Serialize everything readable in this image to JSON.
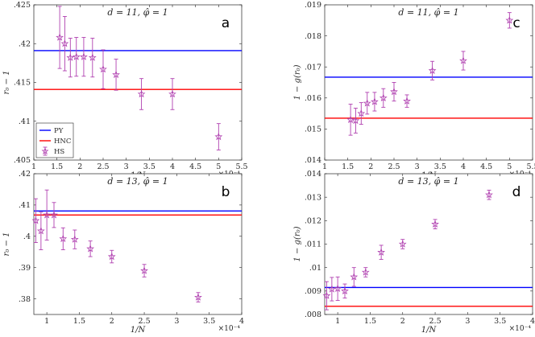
{
  "chart_data": [
    {
      "type": "scatter",
      "panel_letter": "a",
      "title": "d = 11, φ̂ = 1",
      "xlabel": "1/N",
      "ylabel": "r₀ − 1",
      "x_multiplier": "×10⁻⁴",
      "xlim": [
        1,
        5.5
      ],
      "ylim": [
        0.405,
        0.425
      ],
      "xticks": [
        1,
        1.5,
        2,
        2.5,
        3,
        3.5,
        4,
        4.5,
        5,
        5.5
      ],
      "yticks": [
        0.405,
        0.41,
        0.415,
        0.42,
        0.425
      ],
      "lines": [
        {
          "name": "PY",
          "value": 0.4191,
          "color": "#0000ff"
        },
        {
          "name": "HNC",
          "value": 0.4141,
          "color": "#ff0000"
        }
      ],
      "series": [
        {
          "name": "HS",
          "color": "#b040b0",
          "x": [
            1.56,
            1.67,
            1.79,
            1.92,
            2.08,
            2.27,
            2.5,
            2.78,
            3.33,
            4.0,
            5.0
          ],
          "y": [
            0.4208,
            0.42,
            0.4182,
            0.4183,
            0.4183,
            0.4182,
            0.4167,
            0.416,
            0.4135,
            0.4135,
            0.408
          ],
          "err": [
            0.004,
            0.0035,
            0.0025,
            0.0025,
            0.0025,
            0.0025,
            0.0025,
            0.002,
            0.002,
            0.002,
            0.0017
          ]
        }
      ],
      "legend": {
        "placement": "bottom-left",
        "entries": [
          "PY",
          "HNC",
          "HS"
        ]
      }
    },
    {
      "type": "scatter",
      "panel_letter": "c",
      "title": "d = 11, φ̂ = 1",
      "xlabel": "1/N",
      "ylabel": "1 − g(r₀)",
      "x_multiplier": "×10⁻⁴",
      "xlim": [
        1,
        5.5
      ],
      "ylim": [
        0.014,
        0.019
      ],
      "xticks": [
        1,
        1.5,
        2,
        2.5,
        3,
        3.5,
        4,
        4.5,
        5,
        5.5
      ],
      "yticks": [
        0.014,
        0.015,
        0.016,
        0.017,
        0.018,
        0.019
      ],
      "lines": [
        {
          "name": "PY",
          "value": 0.01667,
          "color": "#0000ff"
        },
        {
          "name": "HNC",
          "value": 0.01535,
          "color": "#ff0000"
        }
      ],
      "series": [
        {
          "name": "HS",
          "color": "#b040b0",
          "x": [
            1.56,
            1.67,
            1.79,
            1.92,
            2.08,
            2.27,
            2.5,
            2.78,
            3.33,
            4.0,
            5.0
          ],
          "y": [
            0.0153,
            0.01527,
            0.0155,
            0.01583,
            0.01588,
            0.016,
            0.0162,
            0.0159,
            0.01688,
            0.0172,
            0.0185
          ],
          "err": [
            0.0005,
            0.0004,
            0.00035,
            0.00035,
            0.0003,
            0.0003,
            0.0003,
            0.0002,
            0.0003,
            0.0003,
            0.00025
          ]
        }
      ]
    },
    {
      "type": "scatter",
      "panel_letter": "b",
      "title": "d = 13, φ̂ = 1",
      "xlabel": "1/N",
      "ylabel": "r₀ − 1",
      "x_multiplier": "×10⁻⁴",
      "xlim": [
        0.8,
        4
      ],
      "ylim": [
        0.375,
        0.42
      ],
      "xticks": [
        1,
        1.5,
        2,
        2.5,
        3,
        3.5,
        4
      ],
      "yticks": [
        0.38,
        0.39,
        0.4,
        0.41,
        0.42
      ],
      "lines": [
        {
          "name": "PY",
          "value": 0.4081,
          "color": "#0000ff"
        },
        {
          "name": "HNC",
          "value": 0.4068,
          "color": "#ff0000"
        }
      ],
      "series": [
        {
          "name": "HS",
          "color": "#b040b0",
          "x": [
            0.83,
            0.91,
            1.0,
            1.11,
            1.25,
            1.43,
            1.67,
            2.0,
            2.5,
            3.33
          ],
          "y": [
            0.405,
            0.4017,
            0.4068,
            0.4068,
            0.3992,
            0.399,
            0.396,
            0.3935,
            0.389,
            0.3805
          ],
          "err": [
            0.007,
            0.006,
            0.008,
            0.004,
            0.0035,
            0.003,
            0.0025,
            0.002,
            0.002,
            0.0015
          ]
        }
      ]
    },
    {
      "type": "scatter",
      "panel_letter": "d",
      "title": "d = 13, φ̂ = 1",
      "xlabel": "1/N",
      "ylabel": "1 − g(r₀)",
      "x_multiplier": "×10⁻⁴",
      "xlim": [
        0.8,
        4
      ],
      "ylim": [
        0.008,
        0.014
      ],
      "xticks": [
        1,
        1.5,
        2,
        2.5,
        3,
        3.5,
        4
      ],
      "yticks": [
        0.008,
        0.009,
        0.01,
        0.011,
        0.012,
        0.013,
        0.014
      ],
      "lines": [
        {
          "name": "PY",
          "value": 0.00915,
          "color": "#0000ff"
        },
        {
          "name": "HNC",
          "value": 0.00835,
          "color": "#ff0000"
        }
      ],
      "series": [
        {
          "name": "HS",
          "color": "#b040b0",
          "x": [
            0.83,
            0.91,
            1.0,
            1.11,
            1.25,
            1.43,
            1.67,
            2.0,
            2.5,
            3.33
          ],
          "y": [
            0.0088,
            0.00908,
            0.0091,
            0.009,
            0.0096,
            0.0098,
            0.01065,
            0.011,
            0.01185,
            0.0131
          ],
          "err": [
            0.0006,
            0.0005,
            0.0005,
            0.0003,
            0.0004,
            0.0002,
            0.0003,
            0.0002,
            0.0002,
            0.0002
          ]
        }
      ]
    }
  ]
}
